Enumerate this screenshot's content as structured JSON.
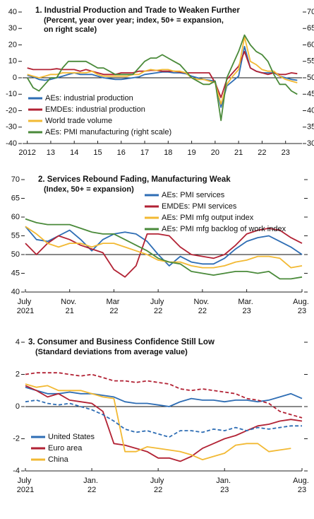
{
  "chart_data": [
    {
      "type": "line",
      "title": "1. Industrial Production and Trade to Weaken Further",
      "subtitle": [
        "(Percent, year over year; index, 50+ = expansion,",
        "on right scale)"
      ],
      "x": [
        2012.0,
        2012.25,
        2012.5,
        2012.75,
        2013.0,
        2013.25,
        2013.5,
        2013.75,
        2014.0,
        2014.25,
        2014.5,
        2014.75,
        2015.0,
        2015.25,
        2015.5,
        2015.75,
        2016.0,
        2016.25,
        2016.5,
        2016.75,
        2017.0,
        2017.25,
        2017.5,
        2017.75,
        2018.0,
        2018.25,
        2018.5,
        2018.75,
        2019.0,
        2019.25,
        2019.5,
        2019.75,
        2020.0,
        2020.25,
        2020.5,
        2020.75,
        2021.0,
        2021.25,
        2021.5,
        2021.75,
        2022.0,
        2022.25,
        2022.5,
        2022.75,
        2023.0,
        2023.25,
        2023.5
      ],
      "xlim": [
        2011.8,
        2023.7
      ],
      "xticks": [
        {
          "value": 2012,
          "label": "2012"
        },
        {
          "value": 2013,
          "label": "13"
        },
        {
          "value": 2014,
          "label": "14"
        },
        {
          "value": 2015,
          "label": "15"
        },
        {
          "value": 2016,
          "label": "16"
        },
        {
          "value": 2017,
          "label": "17"
        },
        {
          "value": 2018,
          "label": "18"
        },
        {
          "value": 2019,
          "label": "19"
        },
        {
          "value": 2020,
          "label": "20"
        },
        {
          "value": 2021,
          "label": "21"
        },
        {
          "value": 2022,
          "label": "22"
        },
        {
          "value": 2023,
          "label": "23"
        }
      ],
      "ylim": [
        -40,
        40
      ],
      "yticks": [
        -40,
        -30,
        -20,
        -10,
        0,
        10,
        20,
        30,
        40
      ],
      "y2lim": [
        30,
        70
      ],
      "y2ticks": [
        30,
        35,
        40,
        45,
        50,
        55,
        60,
        65,
        70
      ],
      "reference_line": 0,
      "legend": "lower left",
      "series": [
        {
          "name": "AEs: industrial production",
          "color": "#2e6db4",
          "values": [
            1.5,
            0.5,
            -1,
            -1.5,
            -1,
            0,
            1,
            2,
            3,
            2,
            2,
            2,
            1,
            0,
            -0.5,
            -1,
            -1,
            -0.5,
            0,
            0.5,
            2,
            2.5,
            3,
            3.5,
            3.5,
            3,
            3,
            2.5,
            1,
            0,
            -1,
            -1.5,
            -2,
            -18,
            -5,
            -2,
            1,
            19,
            6,
            4,
            3,
            3,
            3,
            1,
            0,
            -1,
            -1.5
          ]
        },
        {
          "name": "EMDEs: industrial production",
          "color": "#b22234",
          "values": [
            6,
            5,
            5,
            5,
            5,
            5.5,
            5,
            5,
            5,
            4,
            5,
            4,
            3,
            2,
            2,
            2,
            3,
            3,
            3,
            4,
            4,
            4.5,
            4.5,
            4,
            4,
            4,
            3.5,
            3,
            3,
            3,
            3,
            3,
            -3,
            -12,
            -1,
            3,
            7,
            16,
            6,
            4,
            3,
            2,
            3,
            2,
            2,
            3,
            2.5
          ]
        },
        {
          "name": "World trade volume",
          "color": "#f2b933",
          "values": [
            2,
            1,
            0,
            1,
            2,
            2,
            3,
            3,
            3,
            3,
            3,
            4,
            2,
            1,
            1,
            1,
            1,
            1,
            2,
            2,
            4,
            5,
            4.5,
            5,
            5,
            4,
            4,
            3,
            0,
            -1,
            -1,
            -2,
            -3,
            -16,
            -4,
            1,
            5,
            25,
            10,
            8,
            5,
            4,
            4,
            1,
            -1,
            -2,
            -3
          ]
        },
        {
          "name": "AEs: PMI manufacturing (right scale)",
          "color": "#4a8a3a",
          "axis": "y2",
          "values": [
            50,
            47,
            46,
            48,
            50,
            50,
            53,
            55,
            55,
            55,
            55,
            54,
            53,
            53,
            52,
            51,
            51,
            51,
            51,
            53,
            55,
            56,
            56,
            57,
            56,
            55,
            54,
            52,
            50,
            49,
            48,
            48,
            49,
            37,
            50,
            54,
            58,
            63,
            60,
            58,
            57,
            55,
            51,
            48,
            48,
            46,
            45
          ]
        }
      ]
    },
    {
      "type": "line",
      "title": "2. Services Rebound Fading, Manufacturing Weak",
      "subtitle": [
        "(Index, 50+ = expansion)"
      ],
      "categories": [
        "July 2021",
        null,
        null,
        null,
        "Nov. 21",
        null,
        null,
        null,
        "Mar 22",
        null,
        null,
        null,
        "July 22",
        null,
        null,
        null,
        "Nov. 22",
        null,
        null,
        null,
        "Mar. 23",
        null,
        null,
        null,
        null,
        "Aug. 23"
      ],
      "ylim": [
        40,
        70
      ],
      "yticks": [
        40,
        45,
        50,
        55,
        60,
        65,
        70
      ],
      "reference_line": 50,
      "legend": "upper right",
      "series": [
        {
          "name": "AEs: PMI services",
          "color": "#2e6db4",
          "values": [
            57.5,
            54,
            53.5,
            55,
            56.5,
            54,
            51,
            54,
            55.5,
            56,
            55.5,
            53.5,
            50,
            47,
            49.5,
            48,
            47.5,
            47.5,
            49,
            51.5,
            53.5,
            54.5,
            55,
            53.5,
            52,
            50
          ]
        },
        {
          "name": "EMDEs: PMI services",
          "color": "#b22234",
          "values": [
            53,
            50,
            53,
            55,
            54,
            52.5,
            51.5,
            50.5,
            46,
            44,
            47,
            55.5,
            55.5,
            55,
            52,
            50,
            49.5,
            49,
            50,
            52.5,
            55.5,
            56.5,
            57,
            56.5,
            54.5,
            53
          ]
        },
        {
          "name": "AEs: PMI mfg output index",
          "color": "#f2b933",
          "values": [
            57.5,
            55.5,
            53,
            52,
            53,
            53,
            52,
            53,
            53,
            52,
            51,
            50,
            48.5,
            48,
            48,
            47,
            46.5,
            46.5,
            47,
            48,
            48.5,
            49.5,
            49.5,
            49,
            46.5,
            47
          ]
        },
        {
          "name": "AEs: PMI mfg backlog of work index",
          "color": "#4a8a3a",
          "values": [
            59.5,
            58.5,
            58,
            58,
            58,
            57,
            56,
            55.5,
            55.5,
            54,
            52.5,
            51,
            49,
            48,
            47.5,
            45.5,
            45,
            44.5,
            45,
            45.5,
            45.5,
            45,
            45.5,
            43.5,
            43.5,
            44
          ]
        }
      ]
    },
    {
      "type": "line",
      "title": "3. Consumer and Business Confidence Still Low",
      "subtitle": [
        "(Standard deviations from average value)"
      ],
      "categories": [
        "July 2021",
        null,
        null,
        null,
        null,
        null,
        "Jan. 22",
        null,
        null,
        null,
        null,
        null,
        "July 22",
        null,
        null,
        null,
        null,
        null,
        "Jan. 23",
        null,
        null,
        null,
        null,
        null,
        null,
        "Aug. 23"
      ],
      "ylim": [
        -4,
        4
      ],
      "yticks": [
        -4,
        -2,
        0,
        2,
        4
      ],
      "reference_line": 0,
      "legend": "lower left",
      "series": [
        {
          "name": "United States",
          "color": "#2e6db4",
          "values": [
            1.2,
            1.0,
            0.8,
            0.8,
            0.9,
            0.8,
            0.8,
            0.7,
            0.6,
            0.3,
            0.2,
            0.2,
            0.1,
            0.0,
            0.3,
            0.5,
            0.4,
            0.4,
            0.3,
            0.4,
            0.4,
            0.3,
            0.4,
            0.6,
            0.8,
            0.5
          ]
        },
        {
          "name": "Euro area",
          "color": "#b22234",
          "values": [
            1.3,
            1.0,
            0.6,
            0.8,
            0.4,
            0.3,
            0.2,
            -0.3,
            -2.3,
            -2.4,
            -2.6,
            -2.8,
            -3.2,
            -3.2,
            -3.4,
            -3.1,
            -2.6,
            -2.3,
            -2.0,
            -1.8,
            -1.5,
            -1.2,
            -1.1,
            -0.9,
            -0.8,
            -0.9
          ]
        },
        {
          "name": "China",
          "color": "#f2b933",
          "values": [
            1.4,
            1.2,
            1.3,
            1.0,
            1.0,
            1.0,
            0.8,
            0.6,
            0.5,
            -2.8,
            -2.8,
            -2.5,
            -2.6,
            -2.7,
            -2.8,
            -3.0,
            -3.3,
            -3.1,
            -2.9,
            -2.4,
            -2.3,
            -2.3,
            -2.8,
            -2.7,
            -2.6,
            null
          ]
        },
        {
          "color": "#2e6db4",
          "dashed": true,
          "values": [
            0.3,
            0.4,
            0.2,
            0.1,
            0.2,
            0.0,
            -0.2,
            -0.5,
            -0.9,
            -1.4,
            -1.6,
            -1.5,
            -1.7,
            -1.9,
            -1.5,
            -1.5,
            -1.6,
            -1.4,
            -1.5,
            -1.3,
            -1.5,
            -1.3,
            -1.4,
            -1.3,
            -1.2,
            -1.2
          ]
        },
        {
          "color": "#b22234",
          "dashed": true,
          "values": [
            2.0,
            2.1,
            2.1,
            2.1,
            2.0,
            1.9,
            2.0,
            1.8,
            1.6,
            1.6,
            1.5,
            1.6,
            1.5,
            1.4,
            1.1,
            1.0,
            1.1,
            1.0,
            0.9,
            0.8,
            0.5,
            0.4,
            0.2,
            -0.3,
            -0.5,
            -0.7
          ]
        }
      ]
    }
  ]
}
